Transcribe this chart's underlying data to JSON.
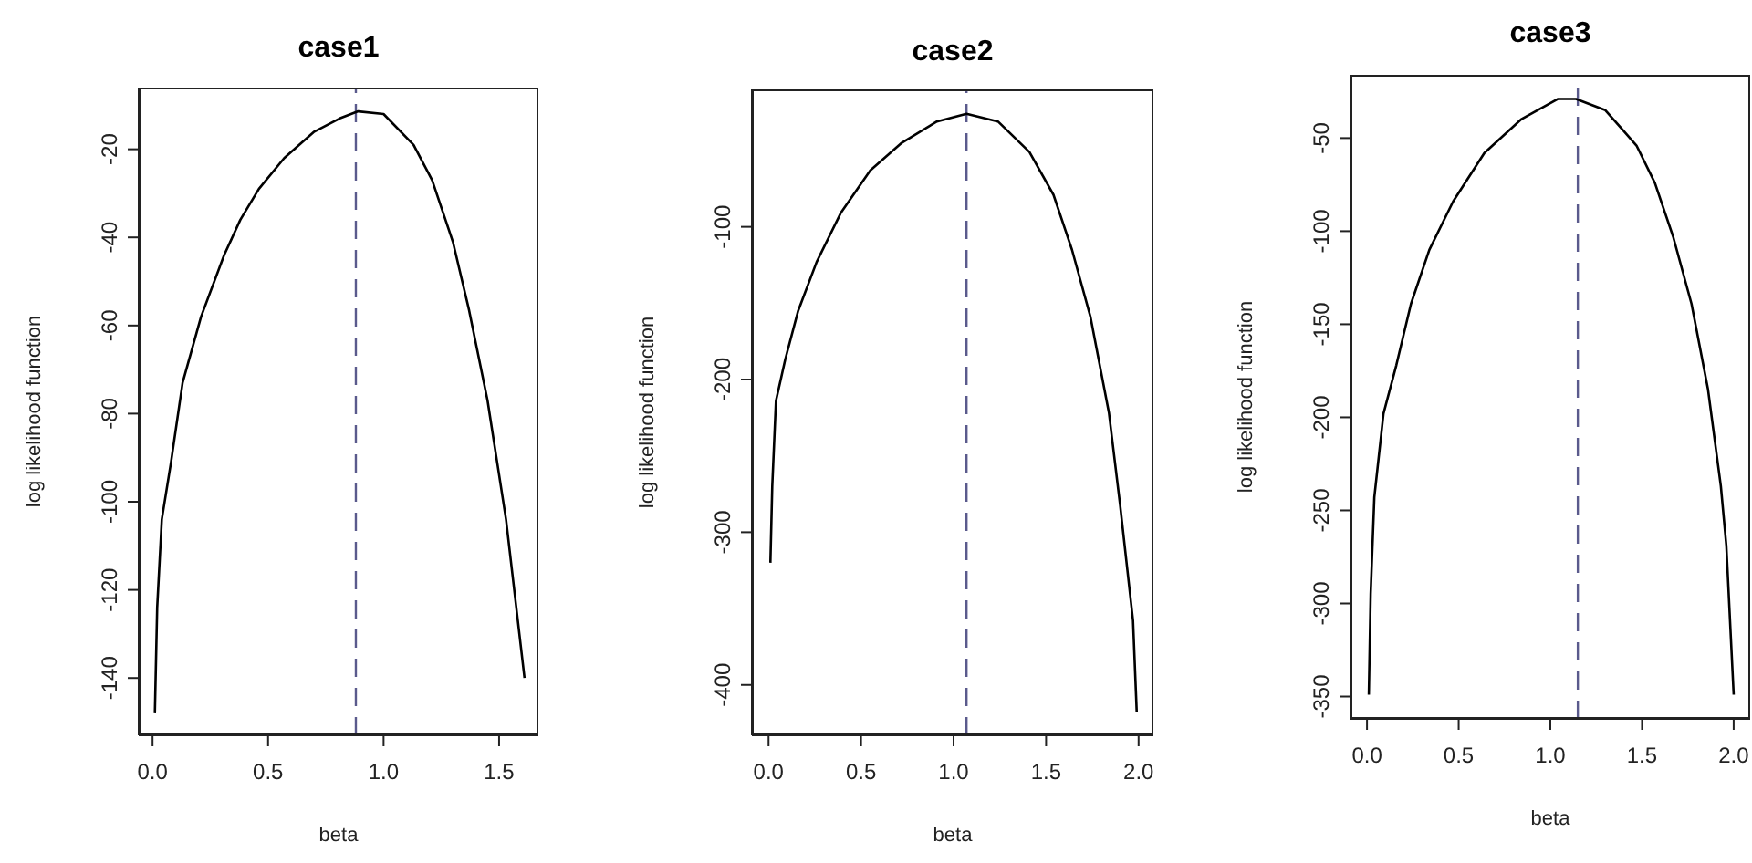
{
  "chart_data": [
    {
      "type": "line",
      "title": "case1",
      "xlabel": "beta",
      "ylabel": "log likelihood function",
      "marker": "none",
      "line_style": "solid",
      "xlim": [
        -0.06,
        1.67
      ],
      "ylim": [
        -153,
        -6
      ],
      "xticks": [
        {
          "value": 0,
          "label": "0.0"
        },
        {
          "value": 0.5,
          "label": "0.5"
        },
        {
          "value": 1,
          "label": "1.0"
        },
        {
          "value": 1.5,
          "label": "1.5"
        }
      ],
      "yticks": [
        -20,
        -40,
        -60,
        -80,
        -100,
        -120,
        -140
      ],
      "series": [
        {
          "color": "#000000",
          "x": [
            0.01,
            0.02,
            0.04,
            0.08,
            0.13,
            0.21,
            0.31,
            0.38,
            0.46,
            0.57,
            0.7,
            0.81,
            0.89,
            1.0,
            1.13,
            1.21,
            1.3,
            1.37,
            1.45,
            1.53,
            1.61
          ],
          "values": [
            -148,
            -124,
            -104,
            -91,
            -73,
            -58,
            -44,
            -36,
            -29,
            -22,
            -16,
            -13,
            -11.4,
            -12,
            -19,
            -27,
            -41,
            -56.5,
            -77,
            -104,
            -140
          ]
        }
      ],
      "ref_lines": [
        {
          "axis": "x",
          "value": 0.88,
          "color": "#5a5a8c",
          "line_style": "dashed"
        }
      ]
    },
    {
      "type": "line",
      "title": "case2",
      "xlabel": "beta",
      "ylabel": "log likelihood function",
      "marker": "none",
      "line_style": "solid",
      "xlim": [
        -0.09,
        2.08
      ],
      "ylim": [
        -433,
        -10
      ],
      "xticks": [
        {
          "value": 0,
          "label": "0.0"
        },
        {
          "value": 0.5,
          "label": "0.5"
        },
        {
          "value": 1,
          "label": "1.0"
        },
        {
          "value": 1.5,
          "label": "1.5"
        },
        {
          "value": 2,
          "label": "2.0"
        }
      ],
      "yticks": [
        -100,
        -200,
        -300,
        -400
      ],
      "series": [
        {
          "color": "#000000",
          "x": [
            0.01,
            0.02,
            0.04,
            0.09,
            0.16,
            0.26,
            0.39,
            0.55,
            0.72,
            0.91,
            1.07,
            1.24,
            1.41,
            1.54,
            1.64,
            1.74,
            1.84,
            1.9,
            1.97,
            1.99
          ],
          "values": [
            -320,
            -270,
            -214,
            -187,
            -155,
            -123,
            -91,
            -63,
            -45,
            -31,
            -26,
            -31,
            -51,
            -79,
            -115,
            -159,
            -222,
            -282,
            -358,
            -418
          ]
        }
      ],
      "ref_lines": [
        {
          "axis": "x",
          "value": 1.07,
          "color": "#5a5a8c",
          "line_style": "dashed"
        }
      ]
    },
    {
      "type": "line",
      "title": "case3",
      "xlabel": "beta",
      "ylabel": "log likelihood function",
      "marker": "none",
      "line_style": "solid",
      "xlim": [
        -0.09,
        2.09
      ],
      "ylim": [
        -362,
        -16
      ],
      "xticks": [
        {
          "value": 0,
          "label": "0.0"
        },
        {
          "value": 0.5,
          "label": "0.5"
        },
        {
          "value": 1,
          "label": "1.0"
        },
        {
          "value": 1.5,
          "label": "1.5"
        },
        {
          "value": 2,
          "label": "2.0"
        }
      ],
      "yticks": [
        -50,
        -100,
        -150,
        -200,
        -250,
        -300,
        -350
      ],
      "series": [
        {
          "color": "#000000",
          "x": [
            0.01,
            0.02,
            0.04,
            0.09,
            0.16,
            0.24,
            0.34,
            0.47,
            0.64,
            0.84,
            1.04,
            1.14,
            1.3,
            1.47,
            1.57,
            1.67,
            1.77,
            1.86,
            1.93,
            1.96,
            2.0
          ],
          "values": [
            -349,
            -295,
            -243,
            -198,
            -172,
            -139,
            -110,
            -84,
            -58,
            -40,
            -29,
            -29,
            -35,
            -54,
            -74,
            -103,
            -139,
            -185,
            -237,
            -269,
            -349
          ]
        }
      ],
      "ref_lines": [
        {
          "axis": "x",
          "value": 1.15,
          "color": "#5a5a8c",
          "line_style": "dashed"
        }
      ]
    }
  ]
}
